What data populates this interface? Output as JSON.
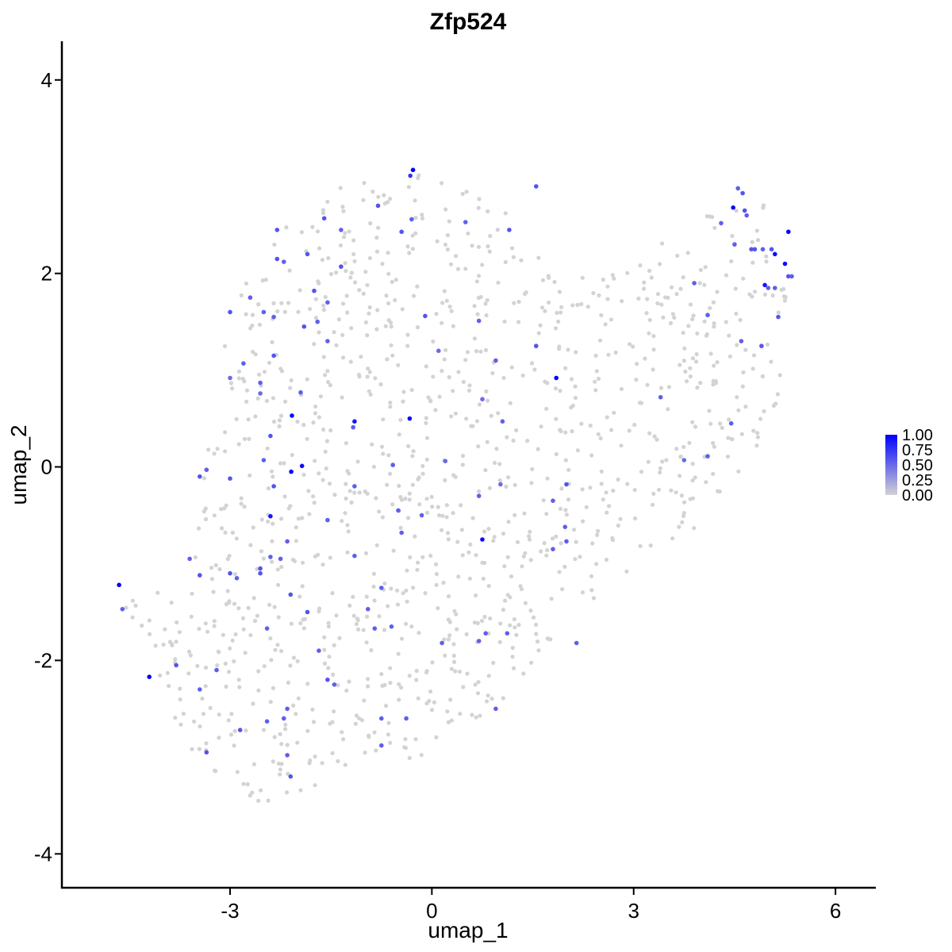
{
  "chart_data": {
    "type": "scatter",
    "title": "Zfp524",
    "xlabel": "umap_1",
    "ylabel": "umap_2",
    "xlim": [
      -5.5,
      6.6
    ],
    "ylim": [
      -4.35,
      4.4
    ],
    "x_ticks": [
      -3,
      0,
      3,
      6
    ],
    "x_tick_labels": [
      "-3",
      "0",
      "3",
      "6"
    ],
    "y_ticks": [
      -4,
      -2,
      0,
      2,
      4
    ],
    "y_tick_labels": [
      "-4",
      "-2",
      "0",
      "2",
      "4"
    ],
    "grid": false,
    "legend_position": "right",
    "color_scale": {
      "low_color": "#d3d3d3",
      "high_color": "#0000ff",
      "min": 0,
      "max": 1,
      "labels": [
        "1.00",
        "0.75",
        "0.50",
        "0.25",
        "0.00"
      ],
      "values": [
        1.0,
        0.75,
        0.5,
        0.25,
        0.0
      ]
    },
    "background_cells": {
      "color": "#d3d3d3",
      "count": 1150,
      "expression": 0,
      "region_polygon": [
        [
          -4.75,
          -1.25
        ],
        [
          -4.2,
          -1.35
        ],
        [
          -3.6,
          -0.9
        ],
        [
          -3.3,
          0.4
        ],
        [
          -3.1,
          1.3
        ],
        [
          -2.75,
          1.95
        ],
        [
          -2.2,
          2.45
        ],
        [
          -1.75,
          2.8
        ],
        [
          -1.0,
          3.0
        ],
        [
          -0.2,
          3.05
        ],
        [
          0.55,
          2.85
        ],
        [
          1.15,
          2.6
        ],
        [
          1.5,
          2.35
        ],
        [
          1.75,
          2.1
        ],
        [
          2.2,
          1.95
        ],
        [
          2.8,
          2.2
        ],
        [
          3.3,
          2.4
        ],
        [
          3.8,
          2.45
        ],
        [
          4.3,
          2.8
        ],
        [
          4.7,
          2.9
        ],
        [
          5.15,
          2.55
        ],
        [
          5.35,
          2.1
        ],
        [
          5.25,
          1.5
        ],
        [
          5.15,
          0.7
        ],
        [
          4.75,
          0.1
        ],
        [
          4.3,
          -0.35
        ],
        [
          3.6,
          -0.85
        ],
        [
          3.0,
          -1.15
        ],
        [
          2.6,
          -1.3
        ],
        [
          2.25,
          -1.45
        ],
        [
          1.8,
          -1.75
        ],
        [
          1.3,
          -2.3
        ],
        [
          0.85,
          -2.6
        ],
        [
          0.1,
          -2.95
        ],
        [
          -0.55,
          -3.05
        ],
        [
          -1.2,
          -3.25
        ],
        [
          -1.9,
          -3.35
        ],
        [
          -2.45,
          -3.55
        ],
        [
          -3.05,
          -3.35
        ],
        [
          -3.6,
          -3.0
        ],
        [
          -4.0,
          -2.4
        ],
        [
          -4.3,
          -1.85
        ],
        [
          -4.6,
          -1.45
        ]
      ]
    },
    "series": [
      {
        "points": [
          {
            "x": -0.28,
            "y": 3.07,
            "v": 1.0
          },
          {
            "x": -0.32,
            "y": 3.01,
            "v": 0.75
          },
          {
            "x": 1.55,
            "y": 2.9,
            "v": 0.6
          },
          {
            "x": -0.8,
            "y": 2.7,
            "v": 0.6
          },
          {
            "x": -0.3,
            "y": 2.56,
            "v": 0.55
          },
          {
            "x": -1.6,
            "y": 2.57,
            "v": 0.6
          },
          {
            "x": -1.35,
            "y": 2.45,
            "v": 0.55
          },
          {
            "x": -2.3,
            "y": 2.45,
            "v": 0.6
          },
          {
            "x": -0.45,
            "y": 2.43,
            "v": 0.6
          },
          {
            "x": 0.5,
            "y": 2.53,
            "v": 0.55
          },
          {
            "x": 1.15,
            "y": 2.45,
            "v": 0.6
          },
          {
            "x": -1.85,
            "y": 2.2,
            "v": 0.6
          },
          {
            "x": -2.3,
            "y": 2.15,
            "v": 0.6
          },
          {
            "x": -2.2,
            "y": 2.12,
            "v": 0.55
          },
          {
            "x": -1.35,
            "y": 2.07,
            "v": 0.6
          },
          {
            "x": -1.75,
            "y": 1.82,
            "v": 0.6
          },
          {
            "x": -2.7,
            "y": 1.75,
            "v": 0.55
          },
          {
            "x": -2.5,
            "y": 1.6,
            "v": 0.55
          },
          {
            "x": -3.0,
            "y": 1.6,
            "v": 0.6
          },
          {
            "x": -1.7,
            "y": 1.5,
            "v": 0.55
          },
          {
            "x": -1.55,
            "y": 1.7,
            "v": 0.55
          },
          {
            "x": -2.35,
            "y": 1.55,
            "v": 0.55
          },
          {
            "x": -1.9,
            "y": 1.45,
            "v": 0.6
          },
          {
            "x": -1.55,
            "y": 1.3,
            "v": 0.55
          },
          {
            "x": -0.1,
            "y": 1.56,
            "v": 0.6
          },
          {
            "x": 0.7,
            "y": 1.51,
            "v": 0.55
          },
          {
            "x": 0.95,
            "y": 1.1,
            "v": 0.55
          },
          {
            "x": 1.55,
            "y": 1.25,
            "v": 0.6
          },
          {
            "x": 0.1,
            "y": 1.2,
            "v": 0.5
          },
          {
            "x": -2.35,
            "y": 1.15,
            "v": 0.6
          },
          {
            "x": -2.8,
            "y": 1.07,
            "v": 0.55
          },
          {
            "x": -2.55,
            "y": 0.87,
            "v": 0.55
          },
          {
            "x": -3.0,
            "y": 0.92,
            "v": 0.5
          },
          {
            "x": -2.55,
            "y": 0.76,
            "v": 0.5
          },
          {
            "x": -1.95,
            "y": 0.77,
            "v": 0.55
          },
          {
            "x": 0.75,
            "y": 0.7,
            "v": 0.5
          },
          {
            "x": 1.85,
            "y": 0.92,
            "v": 1.0
          },
          {
            "x": -2.08,
            "y": 0.53,
            "v": 0.95
          },
          {
            "x": -1.15,
            "y": 0.47,
            "v": 0.9
          },
          {
            "x": -0.33,
            "y": 0.5,
            "v": 0.95
          },
          {
            "x": 1.05,
            "y": 0.47,
            "v": 0.55
          },
          {
            "x": -1.17,
            "y": 0.41,
            "v": 0.55
          },
          {
            "x": -2.4,
            "y": 0.32,
            "v": 0.6
          },
          {
            "x": -2.5,
            "y": 0.07,
            "v": 0.55
          },
          {
            "x": -0.58,
            "y": 0.02,
            "v": 0.55
          },
          {
            "x": 0.2,
            "y": 0.06,
            "v": 0.5
          },
          {
            "x": -1.93,
            "y": 0.01,
            "v": 0.95
          },
          {
            "x": -2.09,
            "y": -0.05,
            "v": 0.95
          },
          {
            "x": -3.45,
            "y": -0.1,
            "v": 0.6
          },
          {
            "x": -3.35,
            "y": -0.03,
            "v": 0.55
          },
          {
            "x": -3.0,
            "y": -0.12,
            "v": 0.6
          },
          {
            "x": -1.15,
            "y": -0.2,
            "v": 0.55
          },
          {
            "x": -2.35,
            "y": -0.2,
            "v": 0.6
          },
          {
            "x": 0.7,
            "y": -0.3,
            "v": 0.55
          },
          {
            "x": 1.02,
            "y": -0.18,
            "v": 0.5
          },
          {
            "x": 2.0,
            "y": -0.18,
            "v": 0.6
          },
          {
            "x": 1.8,
            "y": -0.35,
            "v": 0.55
          },
          {
            "x": -2.4,
            "y": -0.51,
            "v": 0.9
          },
          {
            "x": -0.5,
            "y": -0.45,
            "v": 0.55
          },
          {
            "x": -0.15,
            "y": -0.5,
            "v": 0.55
          },
          {
            "x": -1.55,
            "y": -0.55,
            "v": 0.55
          },
          {
            "x": 1.98,
            "y": -0.62,
            "v": 0.55
          },
          {
            "x": -0.45,
            "y": -0.68,
            "v": 0.55
          },
          {
            "x": 0.75,
            "y": -0.75,
            "v": 0.95
          },
          {
            "x": -2.15,
            "y": -0.77,
            "v": 0.55
          },
          {
            "x": 1.8,
            "y": -0.85,
            "v": 0.55
          },
          {
            "x": 2.0,
            "y": -0.77,
            "v": 0.55
          },
          {
            "x": -2.25,
            "y": -0.95,
            "v": 0.55
          },
          {
            "x": -2.4,
            "y": -0.93,
            "v": 0.55
          },
          {
            "x": -1.15,
            "y": -0.92,
            "v": 0.55
          },
          {
            "x": -3.6,
            "y": -0.95,
            "v": 0.55
          },
          {
            "x": -2.55,
            "y": -1.05,
            "v": 0.6
          },
          {
            "x": -2.55,
            "y": -1.1,
            "v": 0.6
          },
          {
            "x": -3.0,
            "y": -1.1,
            "v": 0.6
          },
          {
            "x": -2.9,
            "y": -1.15,
            "v": 0.55
          },
          {
            "x": -3.45,
            "y": -1.12,
            "v": 0.6
          },
          {
            "x": -4.65,
            "y": -1.22,
            "v": 1.0
          },
          {
            "x": -2.1,
            "y": -1.32,
            "v": 0.6
          },
          {
            "x": -0.75,
            "y": -1.25,
            "v": 0.55
          },
          {
            "x": -4.6,
            "y": -1.47,
            "v": 0.55
          },
          {
            "x": -1.85,
            "y": -1.5,
            "v": 0.6
          },
          {
            "x": -0.95,
            "y": -1.47,
            "v": 0.55
          },
          {
            "x": -2.45,
            "y": -1.67,
            "v": 0.55
          },
          {
            "x": -0.85,
            "y": -1.67,
            "v": 0.55
          },
          {
            "x": -0.6,
            "y": -1.65,
            "v": 0.55
          },
          {
            "x": 0.8,
            "y": -1.72,
            "v": 0.55
          },
          {
            "x": 1.12,
            "y": -1.72,
            "v": 0.55
          },
          {
            "x": 0.7,
            "y": -1.8,
            "v": 0.55
          },
          {
            "x": 0.15,
            "y": -1.82,
            "v": 0.55
          },
          {
            "x": 2.15,
            "y": -1.82,
            "v": 0.55
          },
          {
            "x": -1.68,
            "y": -1.9,
            "v": 0.55
          },
          {
            "x": -3.8,
            "y": -2.05,
            "v": 0.6
          },
          {
            "x": -4.2,
            "y": -2.17,
            "v": 1.0
          },
          {
            "x": -3.2,
            "y": -2.1,
            "v": 0.55
          },
          {
            "x": -1.55,
            "y": -2.2,
            "v": 0.6
          },
          {
            "x": -1.45,
            "y": -2.25,
            "v": 0.55
          },
          {
            "x": -3.45,
            "y": -2.3,
            "v": 0.55
          },
          {
            "x": -2.15,
            "y": -2.5,
            "v": 0.55
          },
          {
            "x": 0.95,
            "y": -2.5,
            "v": 0.55
          },
          {
            "x": -2.45,
            "y": -2.63,
            "v": 0.55
          },
          {
            "x": -2.2,
            "y": -2.6,
            "v": 0.55
          },
          {
            "x": -0.75,
            "y": -2.6,
            "v": 0.55
          },
          {
            "x": -0.38,
            "y": -2.6,
            "v": 0.55
          },
          {
            "x": -2.85,
            "y": -2.72,
            "v": 0.6
          },
          {
            "x": -0.75,
            "y": -2.88,
            "v": 0.55
          },
          {
            "x": -3.35,
            "y": -2.95,
            "v": 0.6
          },
          {
            "x": -2.15,
            "y": -2.98,
            "v": 0.55
          },
          {
            "x": -2.1,
            "y": -3.2,
            "v": 0.6
          },
          {
            "x": 4.48,
            "y": 2.68,
            "v": 0.95
          },
          {
            "x": 4.55,
            "y": 2.88,
            "v": 0.55
          },
          {
            "x": 4.62,
            "y": 2.83,
            "v": 0.6
          },
          {
            "x": 4.65,
            "y": 2.65,
            "v": 0.6
          },
          {
            "x": 4.68,
            "y": 2.6,
            "v": 0.55
          },
          {
            "x": 4.3,
            "y": 2.52,
            "v": 0.55
          },
          {
            "x": 4.5,
            "y": 2.3,
            "v": 0.55
          },
          {
            "x": 4.75,
            "y": 2.25,
            "v": 0.6
          },
          {
            "x": 4.8,
            "y": 2.25,
            "v": 0.6
          },
          {
            "x": 4.92,
            "y": 2.25,
            "v": 0.55
          },
          {
            "x": 5.05,
            "y": 2.25,
            "v": 0.6
          },
          {
            "x": 5.1,
            "y": 2.2,
            "v": 0.95
          },
          {
            "x": 5.3,
            "y": 2.43,
            "v": 1.0
          },
          {
            "x": 5.25,
            "y": 2.1,
            "v": 0.95
          },
          {
            "x": 5.3,
            "y": 1.97,
            "v": 0.6
          },
          {
            "x": 5.35,
            "y": 1.97,
            "v": 0.55
          },
          {
            "x": 4.95,
            "y": 1.88,
            "v": 0.9
          },
          {
            "x": 5.0,
            "y": 1.85,
            "v": 0.55
          },
          {
            "x": 5.1,
            "y": 1.85,
            "v": 0.55
          },
          {
            "x": 3.9,
            "y": 1.9,
            "v": 0.55
          },
          {
            "x": 4.1,
            "y": 1.57,
            "v": 0.55
          },
          {
            "x": 5.15,
            "y": 1.55,
            "v": 0.6
          },
          {
            "x": 4.6,
            "y": 1.3,
            "v": 0.55
          },
          {
            "x": 4.9,
            "y": 1.25,
            "v": 0.6
          },
          {
            "x": 3.4,
            "y": 0.72,
            "v": 0.55
          },
          {
            "x": 4.45,
            "y": 0.45,
            "v": 0.55
          },
          {
            "x": 3.75,
            "y": 0.07,
            "v": 0.5
          },
          {
            "x": 4.1,
            "y": 0.11,
            "v": 0.55
          }
        ]
      }
    ]
  }
}
